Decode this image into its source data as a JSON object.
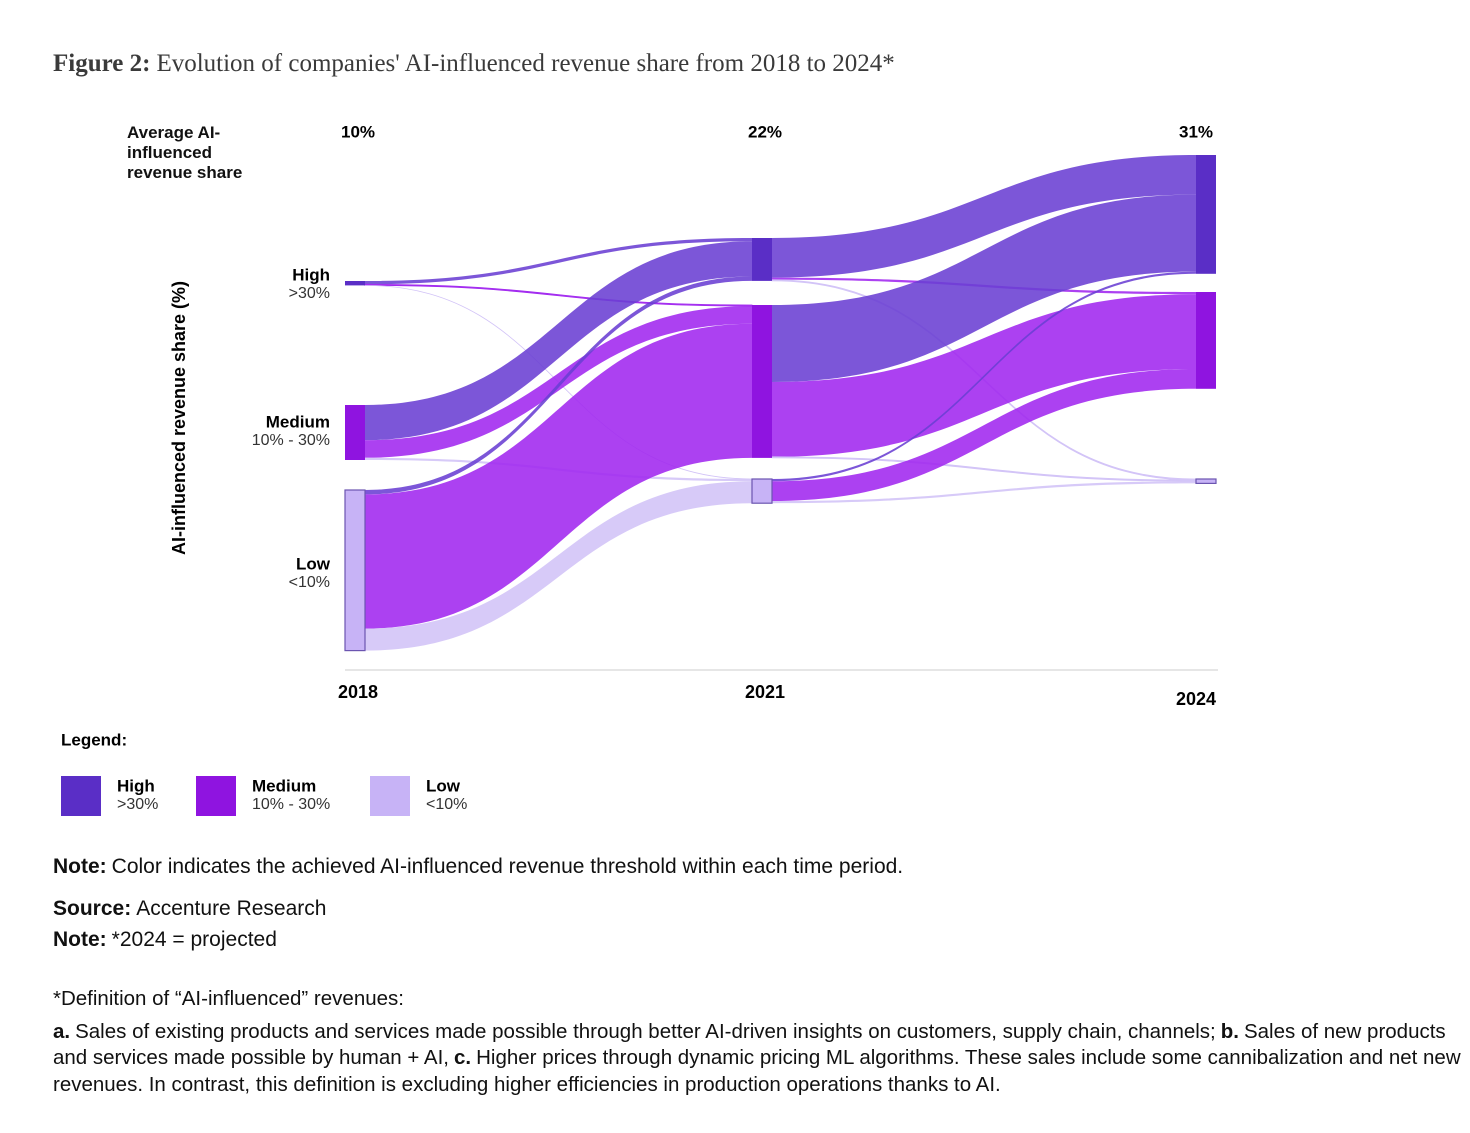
{
  "chart_data": {
    "type": "sankey",
    "figure_label": "Figure 2:",
    "title": "Evolution of companies' AI-influenced revenue share from 2018 to 2024*",
    "stage_value_title": "Average AI-influenced revenue share",
    "stages": [
      "2018",
      "2021",
      "2024"
    ],
    "stage_values": [
      10,
      22,
      31
    ],
    "stage_value_labels": [
      "10%",
      "22%",
      "31%"
    ],
    "y_label": "AI-influenced revenue share (%)",
    "levels": [
      {
        "name": "High",
        "range": ">30%",
        "color": "#5a2ec6",
        "flow_color": "#6a3fd3"
      },
      {
        "name": "Medium",
        "range": "10% - 30%",
        "color": "#8f14e0",
        "flow_color": "#a127ef"
      },
      {
        "name": "Low",
        "range": "<10%",
        "color": "#c7b3f6",
        "flow_color": "#d2c3f7"
      }
    ],
    "flows": [
      [
        [
          1.5,
          0.5,
          0
        ],
        [
          16,
          8,
          1
        ],
        [
          2,
          61,
          10
        ]
      ],
      [
        [
          18,
          1,
          0.5
        ],
        [
          35,
          34,
          0.5
        ],
        [
          1,
          9,
          1
        ]
      ]
    ],
    "legend_title": "Legend:",
    "notes": [
      {
        "label": "Note:",
        "text": "Color indicates the achieved AI-influenced revenue threshold within each time period."
      },
      {
        "label": "Source:",
        "text": "Accenture Research"
      },
      {
        "label": "Note:",
        "text": "*2024 = projected"
      }
    ],
    "definition_title": "*Definition of “AI-influenced” revenues:",
    "definition_parts": [
      {
        "label": "a.",
        "text": "Sales of existing products and services made possible through better AI-driven insights on customers, supply chain, channels;"
      },
      {
        "label": "b.",
        "text": "Sales of new products and services made possible by human + AI,"
      },
      {
        "label": "c.",
        "text": "Higher prices through dynamic pricing ML algorithms. These sales include some cannibalization and net new revenues. In contrast, this definition is excluding higher efficiencies in production operations thanks to AI."
      }
    ]
  }
}
